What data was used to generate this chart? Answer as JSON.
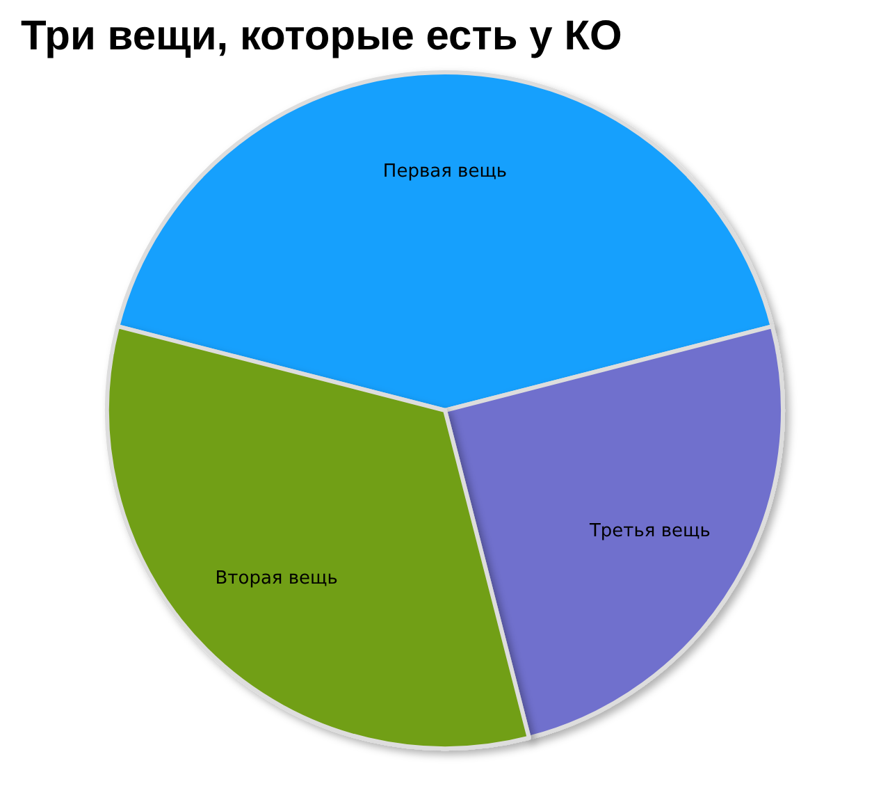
{
  "chart_data": {
    "type": "pie",
    "title": "Три вещи, которые есть у КО",
    "categories": [
      "Первая вещь",
      "Третья вещь",
      "Вторая вещь"
    ],
    "values": [
      42,
      25,
      33
    ],
    "colors": [
      "#17a0fd",
      "#7070cd",
      "#719f13"
    ]
  }
}
